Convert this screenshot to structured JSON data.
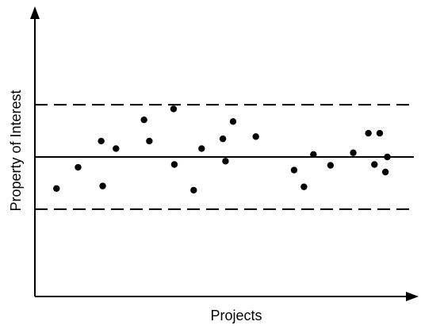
{
  "chart_data": {
    "type": "scatter",
    "xlabel": "Projects",
    "ylabel": "Property of Interest",
    "grid": false,
    "xlim": [
      0,
      100
    ],
    "ylim": [
      0,
      100
    ],
    "center_line": 50,
    "upper_limit": 68.7,
    "lower_limit": 31.3,
    "points": [
      {
        "x": 5.7,
        "y": 38.7
      },
      {
        "x": 11.4,
        "y": 46.3
      },
      {
        "x": 17.5,
        "y": 55.7
      },
      {
        "x": 17.9,
        "y": 39.6
      },
      {
        "x": 21.4,
        "y": 53.0
      },
      {
        "x": 28.8,
        "y": 63.3
      },
      {
        "x": 30.2,
        "y": 55.7
      },
      {
        "x": 36.6,
        "y": 67.2
      },
      {
        "x": 36.8,
        "y": 47.3
      },
      {
        "x": 41.9,
        "y": 38.1
      },
      {
        "x": 44.0,
        "y": 53.0
      },
      {
        "x": 49.6,
        "y": 56.5
      },
      {
        "x": 50.3,
        "y": 48.5
      },
      {
        "x": 52.3,
        "y": 62.7
      },
      {
        "x": 58.3,
        "y": 57.3
      },
      {
        "x": 68.4,
        "y": 45.3
      },
      {
        "x": 71.0,
        "y": 39.3
      },
      {
        "x": 73.5,
        "y": 50.9
      },
      {
        "x": 78.0,
        "y": 47.0
      },
      {
        "x": 84.0,
        "y": 51.5
      },
      {
        "x": 88.0,
        "y": 58.5
      },
      {
        "x": 89.6,
        "y": 47.3
      },
      {
        "x": 91.0,
        "y": 58.5
      },
      {
        "x": 92.5,
        "y": 44.6
      },
      {
        "x": 93.0,
        "y": 50.0
      }
    ]
  }
}
